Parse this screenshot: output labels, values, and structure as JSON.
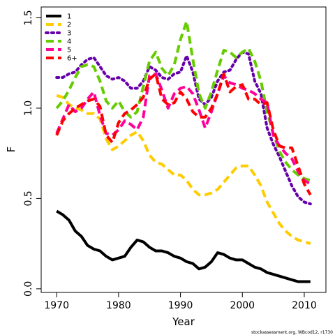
{
  "chart_data": {
    "type": "line",
    "xlabel": "Year",
    "ylabel": "F",
    "xlim": [
      1967.5,
      2013.5
    ],
    "ylim": [
      -0.02,
      1.56
    ],
    "x_ticks": [
      1970,
      1980,
      1990,
      2000,
      2010
    ],
    "y_ticks": [
      0.0,
      0.5,
      1.0,
      1.5
    ],
    "y_tick_labels": [
      "0.0",
      "0.5",
      "1.0",
      "1.5"
    ],
    "legend_position": "top-left",
    "footer": "stockassessment.org, WBcod12, r1730",
    "series": [
      {
        "name": "1",
        "color": "#000000",
        "dash": "solid",
        "x": [
          1970,
          1971,
          1972,
          1973,
          1974,
          1975,
          1976,
          1977,
          1978,
          1979,
          1980,
          1981,
          1982,
          1983,
          1984,
          1985,
          1986,
          1987,
          1988,
          1989,
          1990,
          1991,
          1992,
          1993,
          1994,
          1995,
          1996,
          1997,
          1998,
          1999,
          2000,
          2001,
          2002,
          2003,
          2004,
          2005,
          2006,
          2007,
          2008,
          2009,
          2010,
          2011
        ],
        "y": [
          0.43,
          0.41,
          0.38,
          0.32,
          0.29,
          0.24,
          0.22,
          0.21,
          0.18,
          0.16,
          0.17,
          0.18,
          0.23,
          0.27,
          0.26,
          0.23,
          0.21,
          0.21,
          0.2,
          0.18,
          0.17,
          0.15,
          0.14,
          0.11,
          0.12,
          0.15,
          0.2,
          0.19,
          0.17,
          0.16,
          0.16,
          0.14,
          0.12,
          0.11,
          0.09,
          0.08,
          0.07,
          0.06,
          0.05,
          0.04,
          0.04,
          0.04
        ]
      },
      {
        "name": "2",
        "color": "#ffcc00",
        "dash": "dashed",
        "x": [
          1970,
          1971,
          1972,
          1973,
          1974,
          1975,
          1976,
          1977,
          1978,
          1979,
          1980,
          1981,
          1982,
          1983,
          1984,
          1985,
          1986,
          1987,
          1988,
          1989,
          1990,
          1991,
          1992,
          1993,
          1994,
          1995,
          1996,
          1997,
          1998,
          1999,
          2000,
          2001,
          2002,
          2003,
          2004,
          2005,
          2006,
          2007,
          2008,
          2009,
          2010,
          2011
        ],
        "y": [
          1.07,
          1.06,
          1.02,
          1.0,
          0.99,
          0.97,
          0.97,
          0.94,
          0.83,
          0.77,
          0.79,
          0.82,
          0.85,
          0.87,
          0.82,
          0.74,
          0.7,
          0.69,
          0.66,
          0.63,
          0.63,
          0.6,
          0.55,
          0.52,
          0.52,
          0.53,
          0.55,
          0.59,
          0.63,
          0.67,
          0.68,
          0.68,
          0.63,
          0.57,
          0.48,
          0.42,
          0.36,
          0.32,
          0.29,
          0.27,
          0.26,
          0.25
        ]
      },
      {
        "name": "3",
        "color": "#6600aa",
        "dash": "dotted",
        "x": [
          1970,
          1971,
          1972,
          1973,
          1974,
          1975,
          1976,
          1977,
          1978,
          1979,
          1980,
          1981,
          1982,
          1983,
          1984,
          1985,
          1986,
          1987,
          1988,
          1989,
          1990,
          1991,
          1992,
          1993,
          1994,
          1995,
          1996,
          1997,
          1998,
          1999,
          2000,
          2001,
          2002,
          2003,
          2004,
          2005,
          2006,
          2007,
          2008,
          2009,
          2010,
          2011
        ],
        "y": [
          1.17,
          1.17,
          1.19,
          1.2,
          1.24,
          1.27,
          1.28,
          1.23,
          1.18,
          1.16,
          1.17,
          1.15,
          1.11,
          1.11,
          1.15,
          1.23,
          1.21,
          1.17,
          1.16,
          1.19,
          1.2,
          1.29,
          1.2,
          1.05,
          1.02,
          1.06,
          1.15,
          1.2,
          1.21,
          1.27,
          1.31,
          1.3,
          1.15,
          1.08,
          0.89,
          0.8,
          0.73,
          0.65,
          0.57,
          0.51,
          0.48,
          0.47
        ]
      },
      {
        "name": "4",
        "color": "#66cc00",
        "dash": "dashed",
        "x": [
          1970,
          1971,
          1972,
          1973,
          1974,
          1975,
          1976,
          1977,
          1978,
          1979,
          1980,
          1981,
          1982,
          1983,
          1984,
          1985,
          1986,
          1987,
          1988,
          1989,
          1990,
          1991,
          1992,
          1993,
          1994,
          1995,
          1996,
          1997,
          1998,
          1999,
          2000,
          2001,
          2002,
          2003,
          2004,
          2005,
          2006,
          2007,
          2008,
          2009,
          2010,
          2011
        ],
        "y": [
          1.0,
          1.04,
          1.1,
          1.17,
          1.23,
          1.24,
          1.23,
          1.15,
          1.04,
          1.0,
          1.04,
          0.98,
          0.95,
          0.98,
          1.12,
          1.26,
          1.31,
          1.22,
          1.18,
          1.24,
          1.38,
          1.48,
          1.27,
          1.08,
          1.0,
          1.09,
          1.21,
          1.32,
          1.31,
          1.28,
          1.31,
          1.33,
          1.26,
          1.15,
          0.98,
          0.86,
          0.76,
          0.7,
          0.66,
          0.63,
          0.61,
          0.6
        ]
      },
      {
        "name": "5",
        "color": "#ff0099",
        "dash": "dashed",
        "x": [
          1970,
          1971,
          1972,
          1973,
          1974,
          1975,
          1976,
          1977,
          1978,
          1979,
          1980,
          1981,
          1982,
          1983,
          1984,
          1985,
          1986,
          1987,
          1988,
          1989,
          1990,
          1991,
          1992,
          1993,
          1994,
          1995,
          1996,
          1997,
          1998,
          1999,
          2000,
          2001,
          2002,
          2003,
          2004,
          2005,
          2006,
          2007,
          2008,
          2009,
          2010,
          2011
        ],
        "y": [
          0.86,
          0.94,
          1.02,
          0.98,
          1.0,
          1.05,
          1.09,
          0.96,
          0.86,
          0.85,
          0.88,
          0.93,
          0.91,
          0.88,
          0.95,
          1.18,
          1.19,
          1.1,
          1.0,
          1.08,
          1.11,
          1.12,
          1.08,
          0.99,
          0.89,
          0.98,
          1.08,
          1.18,
          1.14,
          1.13,
          1.11,
          1.1,
          1.08,
          1.05,
          1.03,
          0.85,
          0.79,
          0.75,
          0.72,
          0.65,
          0.6,
          0.58
        ]
      },
      {
        "name": "6+",
        "color": "#ff0000",
        "dash": "dashed",
        "x": [
          1970,
          1971,
          1972,
          1973,
          1974,
          1975,
          1976,
          1977,
          1978,
          1979,
          1980,
          1981,
          1982,
          1983,
          1984,
          1985,
          1986,
          1987,
          1988,
          1989,
          1990,
          1991,
          1992,
          1993,
          1994,
          1995,
          1996,
          1997,
          1998,
          1999,
          2000,
          2001,
          2002,
          2003,
          2004,
          2005,
          2006,
          2007,
          2008,
          2009,
          2010,
          2011
        ],
        "y": [
          0.85,
          0.93,
          0.97,
          1.0,
          1.02,
          1.04,
          1.05,
          1.01,
          0.85,
          0.81,
          0.92,
          0.97,
          0.99,
          1.02,
          1.06,
          1.16,
          1.19,
          1.05,
          1.02,
          1.03,
          1.09,
          1.05,
          0.98,
          0.95,
          0.95,
          1.0,
          1.08,
          1.19,
          1.09,
          1.12,
          1.13,
          1.05,
          1.05,
          1.02,
          1.03,
          0.88,
          0.79,
          0.78,
          0.78,
          0.68,
          0.58,
          0.52
        ]
      }
    ]
  }
}
